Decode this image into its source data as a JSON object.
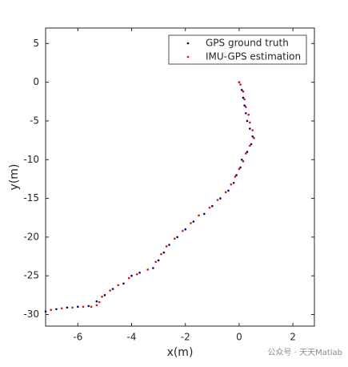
{
  "chart_data": {
    "type": "scatter",
    "xlabel": "x(m)",
    "ylabel": "y(m)",
    "xlim": [
      -7.2,
      2.8
    ],
    "ylim": [
      -31.5,
      7
    ],
    "xticks": [
      -6,
      -4,
      -2,
      0,
      2
    ],
    "yticks": [
      5,
      0,
      -5,
      -10,
      -15,
      -20,
      -25,
      -30
    ],
    "legend": "upper right",
    "series": [
      {
        "name": "GPS ground truth",
        "color": "#00007a",
        "x": [
          0,
          0.1,
          0.15,
          0.2,
          0.25,
          0.3,
          0.4,
          0.5,
          0.45,
          0.3,
          0.1,
          0.05,
          -0.1,
          -0.2,
          -0.4,
          -0.7,
          -1,
          -1.3,
          -1.7,
          -2,
          -2.3,
          -2.6,
          -2.8,
          -3,
          -3.2,
          -3.7,
          -4,
          -4.3,
          -4.7,
          -5,
          -5.3,
          -5.6,
          -6,
          -6.4,
          -6.8,
          -7.2
        ],
        "values": [
          0,
          -1,
          -2,
          -3,
          -4,
          -5,
          -6,
          -7,
          -8,
          -9,
          -10,
          -11,
          -12,
          -13,
          -14,
          -15,
          -16,
          -17,
          -18,
          -19,
          -20,
          -21,
          -22,
          -23,
          -24,
          -24.6,
          -25,
          -26,
          -26.7,
          -27.5,
          -28.3,
          -28.9,
          -29,
          -29.1,
          -29.3,
          -29.6
        ]
      },
      {
        "name": "IMU-GPS estimation",
        "color": "#d81010",
        "x": [
          0,
          0.05,
          0.15,
          0.2,
          0.25,
          0.35,
          0.4,
          0.5,
          0.55,
          0.4,
          0.25,
          0.15,
          0,
          -0.15,
          -0.3,
          -0.5,
          -0.8,
          -1.1,
          -1.5,
          -1.8,
          -2.1,
          -2.4,
          -2.7,
          -2.9,
          -3.1,
          -3.4,
          -3.8,
          -4.1,
          -4.5,
          -4.8,
          -5.1,
          -5.2,
          -5.3,
          -5.5,
          -5.8,
          -6.2,
          -6.6,
          -7
        ],
        "values": [
          0,
          -0.3,
          -1.2,
          -2.2,
          -3.2,
          -4.2,
          -5.2,
          -6.2,
          -7.2,
          -8.2,
          -9.2,
          -10.2,
          -11.2,
          -12.2,
          -13.2,
          -14.2,
          -15.2,
          -16.2,
          -17.2,
          -18.2,
          -19.2,
          -20.2,
          -21.2,
          -22.2,
          -23.2,
          -24.2,
          -24.8,
          -25.3,
          -26.2,
          -26.9,
          -27.7,
          -28.4,
          -28.8,
          -29,
          -29,
          -29.1,
          -29.2,
          -29.4
        ]
      }
    ]
  },
  "watermark": "公众号 · 天天Matlab"
}
